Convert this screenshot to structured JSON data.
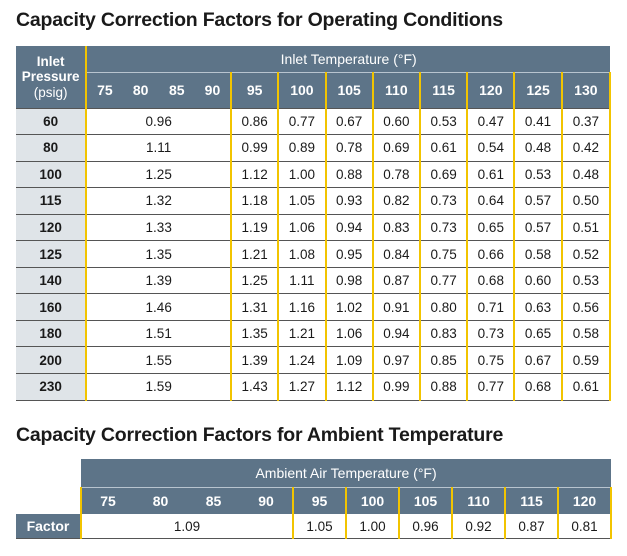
{
  "operating": {
    "title": "Capacity Correction Factors for Operating Conditions",
    "pressure_header": {
      "line1": "Inlet",
      "line2": "Pressure",
      "unit": "(psig)"
    },
    "temp_header": "Inlet Temperature (°F)",
    "temps": [
      "75",
      "80",
      "85",
      "90",
      "95",
      "100",
      "105",
      "110",
      "115",
      "120",
      "125",
      "130"
    ],
    "rows": [
      {
        "pressure": "60",
        "low": "0.96",
        "values": [
          "0.86",
          "0.77",
          "0.67",
          "0.60",
          "0.53",
          "0.47",
          "0.41",
          "0.37"
        ]
      },
      {
        "pressure": "80",
        "low": "1.11",
        "values": [
          "0.99",
          "0.89",
          "0.78",
          "0.69",
          "0.61",
          "0.54",
          "0.48",
          "0.42"
        ]
      },
      {
        "pressure": "100",
        "low": "1.25",
        "values": [
          "1.12",
          "1.00",
          "0.88",
          "0.78",
          "0.69",
          "0.61",
          "0.53",
          "0.48"
        ]
      },
      {
        "pressure": "115",
        "low": "1.32",
        "values": [
          "1.18",
          "1.05",
          "0.93",
          "0.82",
          "0.73",
          "0.64",
          "0.57",
          "0.50"
        ]
      },
      {
        "pressure": "120",
        "low": "1.33",
        "values": [
          "1.19",
          "1.06",
          "0.94",
          "0.83",
          "0.73",
          "0.65",
          "0.57",
          "0.51"
        ]
      },
      {
        "pressure": "125",
        "low": "1.35",
        "values": [
          "1.21",
          "1.08",
          "0.95",
          "0.84",
          "0.75",
          "0.66",
          "0.58",
          "0.52"
        ]
      },
      {
        "pressure": "140",
        "low": "1.39",
        "values": [
          "1.25",
          "1.11",
          "0.98",
          "0.87",
          "0.77",
          "0.68",
          "0.60",
          "0.53"
        ]
      },
      {
        "pressure": "160",
        "low": "1.46",
        "values": [
          "1.31",
          "1.16",
          "1.02",
          "0.91",
          "0.80",
          "0.71",
          "0.63",
          "0.56"
        ]
      },
      {
        "pressure": "180",
        "low": "1.51",
        "values": [
          "1.35",
          "1.21",
          "1.06",
          "0.94",
          "0.83",
          "0.73",
          "0.65",
          "0.58"
        ]
      },
      {
        "pressure": "200",
        "low": "1.55",
        "values": [
          "1.39",
          "1.24",
          "1.09",
          "0.97",
          "0.85",
          "0.75",
          "0.67",
          "0.59"
        ]
      },
      {
        "pressure": "230",
        "low": "1.59",
        "values": [
          "1.43",
          "1.27",
          "1.12",
          "0.99",
          "0.88",
          "0.77",
          "0.68",
          "0.61"
        ]
      }
    ]
  },
  "ambient": {
    "title": "Capacity Correction Factors for Ambient Temperature",
    "header": "Ambient Air Temperature (°F)",
    "temps": [
      "75",
      "80",
      "85",
      "90",
      "95",
      "100",
      "105",
      "110",
      "115",
      "120"
    ],
    "row_label": "Factor",
    "low": "1.09",
    "values": [
      "1.05",
      "1.00",
      "0.96",
      "0.92",
      "0.87",
      "0.81"
    ]
  },
  "colors": {
    "header_bg": "#5d7488",
    "pressure_col_bg": "#dfe4e8",
    "separator": "#f2c400"
  }
}
